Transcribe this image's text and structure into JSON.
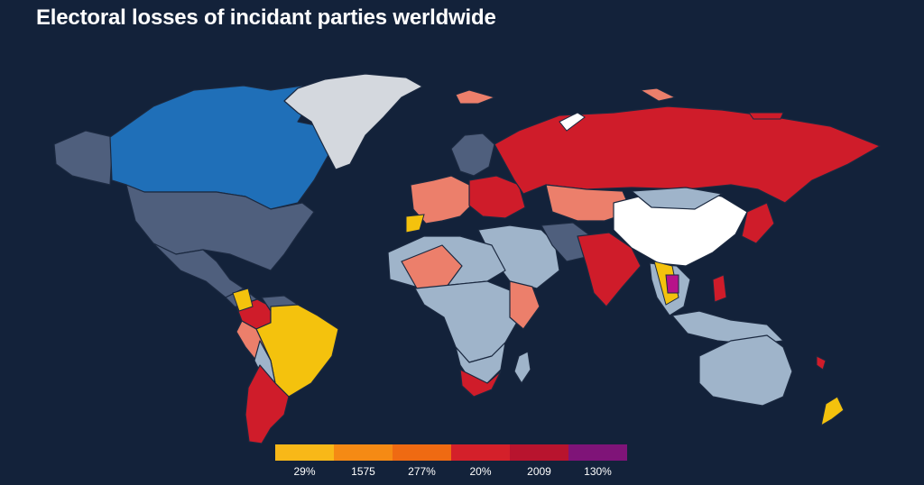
{
  "title": "Electoral losses of incidant parties werldwide",
  "colors": {
    "background": "#13223a",
    "slate": "#4f5f7d",
    "blue": "#1f6fb8",
    "light_blue": "#9fb4ca",
    "white": "#ffffff",
    "light_gray": "#d4d8de",
    "salmon": "#ec7f6b",
    "red": "#cf1c2a",
    "yellow": "#f4c20d",
    "magenta": "#b7128a"
  },
  "legend": {
    "items": [
      {
        "label": "29%",
        "color": "#f8b818"
      },
      {
        "label": "1575",
        "color": "#f58a14"
      },
      {
        "label": "277%",
        "color": "#ef6a12"
      },
      {
        "label": "20%",
        "color": "#d4202a"
      },
      {
        "label": "2009",
        "color": "#b8142e"
      },
      {
        "label": "130%",
        "color": "#7f1478"
      }
    ]
  },
  "regions": [
    {
      "name": "alaska",
      "fill": "slate"
    },
    {
      "name": "canada",
      "fill": "blue"
    },
    {
      "name": "greenland",
      "fill": "light_gray"
    },
    {
      "name": "usa",
      "fill": "slate"
    },
    {
      "name": "mexico",
      "fill": "slate"
    },
    {
      "name": "central-america",
      "fill": "slate"
    },
    {
      "name": "colombia",
      "fill": "red"
    },
    {
      "name": "venezuela",
      "fill": "slate"
    },
    {
      "name": "brazil",
      "fill": "yellow"
    },
    {
      "name": "peru",
      "fill": "salmon"
    },
    {
      "name": "bolivia",
      "fill": "light_blue"
    },
    {
      "name": "argentina-chile",
      "fill": "red"
    },
    {
      "name": "scandinavia",
      "fill": "slate"
    },
    {
      "name": "western-europe",
      "fill": "salmon"
    },
    {
      "name": "eastern-europe",
      "fill": "red"
    },
    {
      "name": "russia",
      "fill": "red"
    },
    {
      "name": "kazakhstan",
      "fill": "salmon"
    },
    {
      "name": "middle-east",
      "fill": "light_blue"
    },
    {
      "name": "iran",
      "fill": "slate"
    },
    {
      "name": "india",
      "fill": "red"
    },
    {
      "name": "china",
      "fill": "white"
    },
    {
      "name": "mongolia",
      "fill": "light_blue"
    },
    {
      "name": "southeast-asia",
      "fill": "light_blue"
    },
    {
      "name": "indonesia",
      "fill": "light_blue"
    },
    {
      "name": "japan",
      "fill": "red"
    },
    {
      "name": "north-africa",
      "fill": "light_blue"
    },
    {
      "name": "sahel",
      "fill": "salmon"
    },
    {
      "name": "central-africa",
      "fill": "light_blue"
    },
    {
      "name": "east-africa",
      "fill": "salmon"
    },
    {
      "name": "southern-africa",
      "fill": "light_blue"
    },
    {
      "name": "south-africa",
      "fill": "red"
    },
    {
      "name": "madagascar",
      "fill": "light_blue"
    },
    {
      "name": "australia",
      "fill": "light_blue"
    },
    {
      "name": "new-zealand",
      "fill": "yellow"
    }
  ]
}
